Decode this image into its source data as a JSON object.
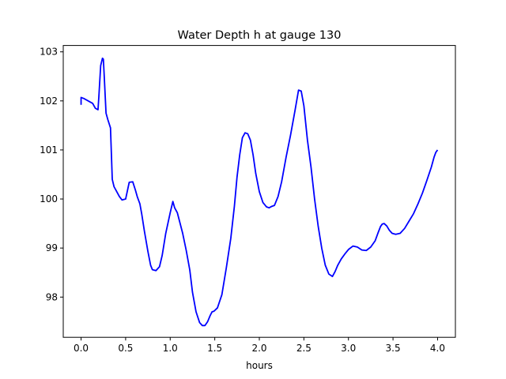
{
  "chart_data": {
    "type": "line",
    "title": "Water Depth h at gauge 130",
    "xlabel": "hours",
    "ylabel": "",
    "xlim": [
      -0.2,
      4.2
    ],
    "ylim": [
      97.18,
      103.13
    ],
    "xticks": [
      0.0,
      0.5,
      1.0,
      1.5,
      2.0,
      2.5,
      3.0,
      3.5,
      4.0
    ],
    "xtick_labels": [
      "0.0",
      "0.5",
      "1.0",
      "1.5",
      "2.0",
      "2.5",
      "3.0",
      "3.5",
      "4.0"
    ],
    "yticks": [
      98,
      99,
      100,
      101,
      102,
      103
    ],
    "ytick_labels": [
      "98",
      "99",
      "100",
      "101",
      "102",
      "103"
    ],
    "grid": false,
    "series": [
      {
        "color": "#0000ff",
        "x": [
          0.0,
          0.0,
          0.03,
          0.08,
          0.13,
          0.16,
          0.19,
          0.2,
          0.22,
          0.24,
          0.25,
          0.26,
          0.28,
          0.3,
          0.33,
          0.35,
          0.37,
          0.4,
          0.43,
          0.46,
          0.5,
          0.54,
          0.58,
          0.61,
          0.63,
          0.66,
          0.68,
          0.71,
          0.75,
          0.78,
          0.8,
          0.84,
          0.88,
          0.91,
          0.95,
          1.0,
          1.03,
          1.05,
          1.08,
          1.1,
          1.14,
          1.18,
          1.22,
          1.25,
          1.29,
          1.33,
          1.36,
          1.39,
          1.42,
          1.45,
          1.47,
          1.49,
          1.53,
          1.58,
          1.63,
          1.68,
          1.72,
          1.75,
          1.78,
          1.81,
          1.84,
          1.87,
          1.9,
          1.93,
          1.96,
          2.0,
          2.04,
          2.08,
          2.11,
          2.14,
          2.17,
          2.21,
          2.25,
          2.3,
          2.35,
          2.4,
          2.44,
          2.47,
          2.5,
          2.54,
          2.58,
          2.62,
          2.66,
          2.7,
          2.74,
          2.78,
          2.82,
          2.85,
          2.88,
          2.92,
          2.96,
          3.0,
          3.05,
          3.1,
          3.15,
          3.2,
          3.25,
          3.3,
          3.33,
          3.36,
          3.38,
          3.4,
          3.43,
          3.46,
          3.49,
          3.53,
          3.58,
          3.63,
          3.68,
          3.73,
          3.78,
          3.83,
          3.88,
          3.93,
          3.96,
          3.98,
          4.0
        ],
        "y": [
          101.92,
          102.07,
          102.05,
          102.0,
          101.95,
          101.85,
          101.82,
          102.1,
          102.72,
          102.87,
          102.85,
          102.5,
          101.75,
          101.62,
          101.45,
          100.4,
          100.25,
          100.15,
          100.05,
          99.98,
          100.0,
          100.34,
          100.35,
          100.18,
          100.05,
          99.9,
          99.7,
          99.35,
          98.93,
          98.65,
          98.56,
          98.54,
          98.62,
          98.85,
          99.3,
          99.72,
          99.95,
          99.82,
          99.72,
          99.58,
          99.3,
          98.95,
          98.55,
          98.1,
          97.7,
          97.48,
          97.42,
          97.42,
          97.5,
          97.63,
          97.7,
          97.71,
          97.78,
          98.05,
          98.6,
          99.2,
          99.85,
          100.45,
          100.9,
          101.25,
          101.35,
          101.33,
          101.2,
          100.9,
          100.52,
          100.15,
          99.93,
          99.84,
          99.82,
          99.85,
          99.87,
          100.05,
          100.35,
          100.85,
          101.3,
          101.8,
          102.22,
          102.2,
          101.9,
          101.2,
          100.65,
          100.0,
          99.45,
          99.0,
          98.65,
          98.47,
          98.42,
          98.52,
          98.65,
          98.78,
          98.88,
          98.97,
          99.04,
          99.02,
          98.96,
          98.95,
          99.02,
          99.15,
          99.3,
          99.44,
          99.49,
          99.5,
          99.45,
          99.36,
          99.3,
          99.28,
          99.3,
          99.4,
          99.55,
          99.7,
          99.9,
          100.12,
          100.38,
          100.65,
          100.85,
          100.95,
          101.0
        ]
      }
    ]
  }
}
